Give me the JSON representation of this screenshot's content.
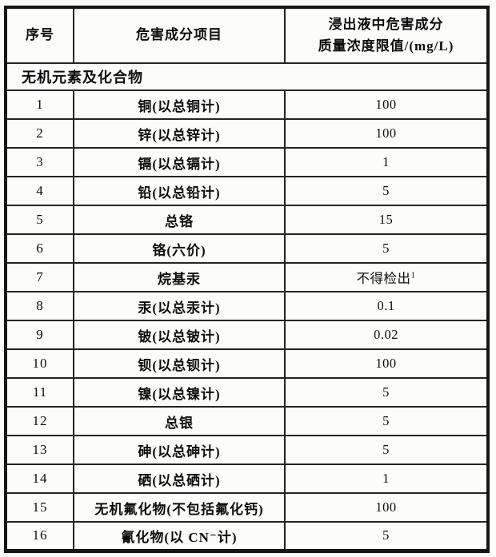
{
  "document": {
    "columns": {
      "no": "序号",
      "item": "危害成分项目",
      "limit_line1": "浸出液中危害成分",
      "limit_line2": "质量浓度限值/(mg/L)"
    },
    "section_header": "无机元素及化合物",
    "rows": [
      {
        "no": "1",
        "item": "铜(以总铜计)",
        "limit": "100"
      },
      {
        "no": "2",
        "item": "锌(以总锌计)",
        "limit": "100"
      },
      {
        "no": "3",
        "item": "镉(以总镉计)",
        "limit": "1"
      },
      {
        "no": "4",
        "item": "铅(以总铅计)",
        "limit": "5"
      },
      {
        "no": "5",
        "item": "总铬",
        "limit": "15"
      },
      {
        "no": "6",
        "item": "铬(六价)",
        "limit": "5"
      },
      {
        "no": "7",
        "item": "烷基汞",
        "limit": "不得检出",
        "limit_sup": "1"
      },
      {
        "no": "8",
        "item": "汞(以总汞计)",
        "limit": "0.1"
      },
      {
        "no": "9",
        "item": "铍(以总铍计)",
        "limit": "0.02"
      },
      {
        "no": "10",
        "item": "钡(以总钡计)",
        "limit": "100"
      },
      {
        "no": "11",
        "item": "镍(以总镍计)",
        "limit": "5"
      },
      {
        "no": "12",
        "item": "总银",
        "limit": "5"
      },
      {
        "no": "13",
        "item": "砷(以总砷计)",
        "limit": "5"
      },
      {
        "no": "14",
        "item": "硒(以总硒计)",
        "limit": "1"
      },
      {
        "no": "15",
        "item": "无机氟化物(不包括氟化钙)",
        "limit": "100"
      },
      {
        "no": "16",
        "item": "氰化物(以 CN⁻计)",
        "limit": "5"
      }
    ],
    "colors": {
      "paper": "#fbfbf9",
      "ink": "#0e0e0e",
      "border": "#161616"
    }
  }
}
